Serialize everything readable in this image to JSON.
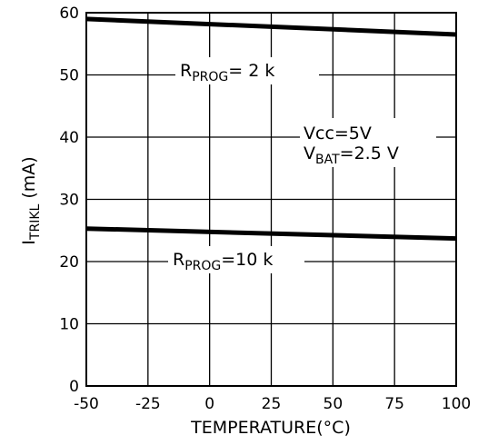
{
  "chart_data": {
    "type": "line",
    "xlabel": {
      "main": "TEMPERATURE(",
      "unit": "°C",
      "close": ")"
    },
    "ylabel": {
      "main": "I",
      "sub": "TRIKL",
      "unit": " (mA)"
    },
    "xlim": [
      -50,
      100
    ],
    "ylim": [
      0,
      60
    ],
    "xticks": [
      -50,
      -25,
      0,
      25,
      50,
      75,
      100
    ],
    "yticks": [
      0,
      10,
      20,
      30,
      40,
      50,
      60
    ],
    "grid": true,
    "series": [
      {
        "name": "RPROG = 2 k",
        "x": [
          -50,
          100
        ],
        "y": [
          59.0,
          56.5
        ]
      },
      {
        "name": "RPROG = 10 k",
        "x": [
          -50,
          100
        ],
        "y": [
          25.3,
          23.7
        ]
      }
    ],
    "annotations": [
      {
        "main": "R",
        "sub": "PROG",
        "rest": "= 2 k"
      },
      {
        "main": "R",
        "sub": "PROG",
        "rest": "=10 k"
      },
      {
        "line1": "Vcc=5V",
        "line2_main": "V",
        "line2_sub": "BAT",
        "line2_rest": "=2.5 V"
      }
    ]
  }
}
